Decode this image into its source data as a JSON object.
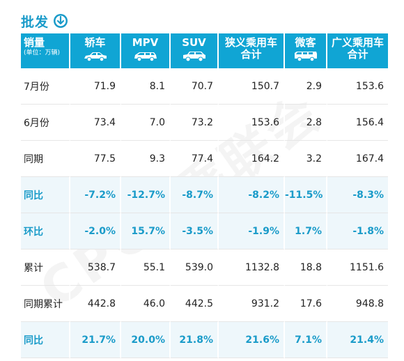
{
  "title": {
    "text": "批发",
    "icon": "arrow-down-circle-icon"
  },
  "colors": {
    "accent": "#10a5d4",
    "highlight_bg": "#eef7fb",
    "highlight_text": "#1a9bc9"
  },
  "table": {
    "corner": {
      "label": "销量",
      "sub": "(单位：万辆)"
    },
    "headers": [
      {
        "label": "轿车",
        "icon": "sedan-icon"
      },
      {
        "label": "MPV",
        "icon": "mpv-icon"
      },
      {
        "label": "SUV",
        "icon": "suv-icon"
      },
      {
        "label": "狭义乘用车\n合计"
      },
      {
        "label": "微客",
        "icon": "minivan-icon"
      },
      {
        "label": "广义乘用车\n合计"
      }
    ],
    "rows": [
      {
        "label": "7月份",
        "values": [
          "71.9",
          "8.1",
          "70.7",
          "150.7",
          "2.9",
          "153.6"
        ],
        "highlight": false
      },
      {
        "label": "6月份",
        "values": [
          "73.4",
          "7.0",
          "73.2",
          "153.6",
          "2.8",
          "156.4"
        ],
        "highlight": false
      },
      {
        "label": "同期",
        "values": [
          "77.5",
          "9.3",
          "77.4",
          "164.2",
          "3.2",
          "167.4"
        ],
        "highlight": false
      },
      {
        "label": "同比",
        "values": [
          "-7.2%",
          "-12.7%",
          "-8.7%",
          "-8.2%",
          "-11.5%",
          "-8.3%"
        ],
        "highlight": true
      },
      {
        "label": "环比",
        "values": [
          "-2.0%",
          "15.7%",
          "-3.5%",
          "-1.9%",
          "1.7%",
          "-1.8%"
        ],
        "highlight": true
      },
      {
        "label": "累计",
        "values": [
          "538.7",
          "55.1",
          "539.0",
          "1132.8",
          "18.8",
          "1151.6"
        ],
        "highlight": false
      },
      {
        "label": "同期累计",
        "values": [
          "442.8",
          "46.0",
          "442.5",
          "931.2",
          "17.6",
          "948.8"
        ],
        "highlight": false
      },
      {
        "label": "同比",
        "values": [
          "21.7%",
          "20.0%",
          "21.8%",
          "21.6%",
          "7.1%",
          "21.4%"
        ],
        "highlight": true
      }
    ]
  },
  "watermark": "CPCA乘联会"
}
